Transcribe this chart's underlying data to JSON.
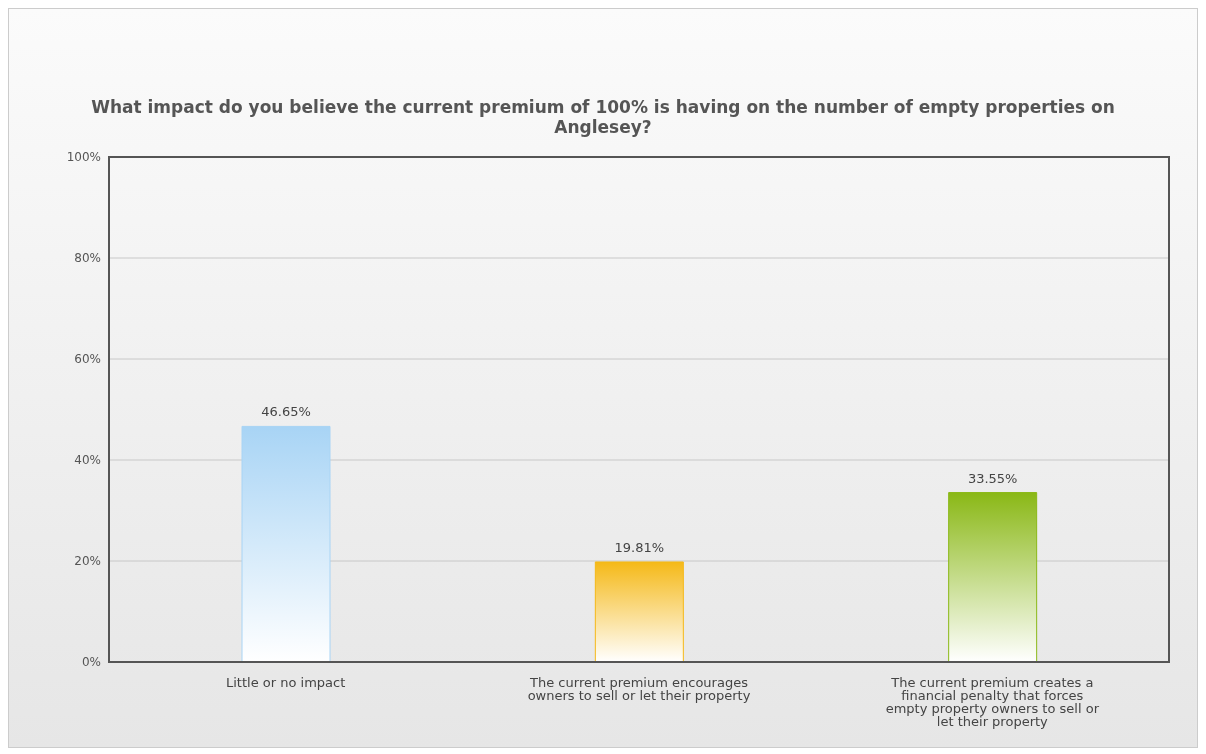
{
  "chart_data": {
    "type": "bar",
    "title": "What impact do you believe the current premium of 100% is having on the number of empty properties on Anglesey?",
    "categories": [
      "Little or no impact",
      "The current premium encourages owners to sell or let their property",
      "The current premium creates a financial penalty that forces empty property owners to sell or let their property"
    ],
    "values": [
      46.65,
      19.81,
      33.55
    ],
    "colors": [
      "#a8d4f5",
      "#f5b918",
      "#8ab816"
    ],
    "value_labels": [
      "46.65%",
      "19.81%",
      "33.55%"
    ],
    "ylim": [
      0,
      100
    ],
    "yticks": [
      {
        "value": 0,
        "label": "0%"
      },
      {
        "value": 20,
        "label": "20%"
      },
      {
        "value": 40,
        "label": "40%"
      },
      {
        "value": 60,
        "label": "60%"
      },
      {
        "value": 80,
        "label": "80%"
      },
      {
        "value": 100,
        "label": "100%"
      }
    ],
    "grid": "y"
  }
}
